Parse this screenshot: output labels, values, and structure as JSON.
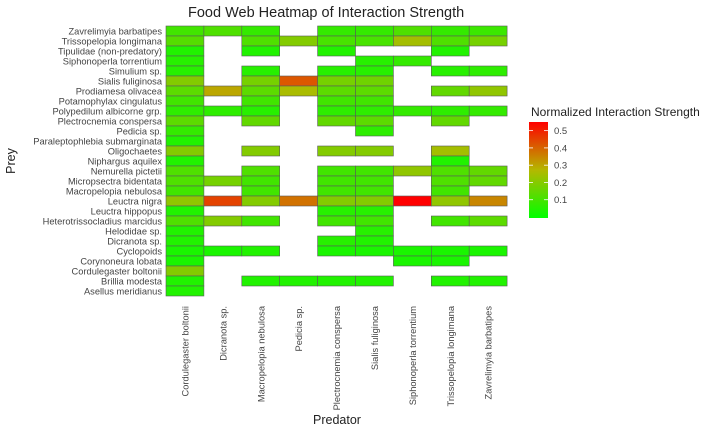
{
  "chart_data": {
    "type": "heatmap",
    "title": "Food Web Heatmap of Interaction Strength",
    "xlabel": "Predator",
    "ylabel": "Prey",
    "legend_title": "Normalized Interaction Strength",
    "legend_position": "right",
    "legend_ticks": [
      0.1,
      0.2,
      0.3,
      0.4,
      0.5
    ],
    "value_range": [
      0.0,
      0.55
    ],
    "color_low": "#00FF00",
    "color_mid": "#B4B800",
    "color_high": "#FF0000",
    "x": [
      "Cordulegaster boltonii",
      "Dicranota sp.",
      "Macropelopia nebulosa",
      "Pedicia sp.",
      "Plectrocnemia conspersa",
      "Sialis fuliginosa",
      "Siphonoperla torrentium",
      "Trissopelopia longimana",
      "Zavrelimyia barbatipes"
    ],
    "y": [
      "Zavrelimyia barbatipes",
      "Trissopelopia longimana",
      "Tipulidae (non-predatory)",
      "Siphonoperla torrentium",
      "Simulium sp.",
      "Sialis fuliginosa",
      "Prodiamesa olivacea",
      "Potamophylax cingulatus",
      "Polypedilum albicorne grp.",
      "Plectrocnemia conspersa",
      "Pedicia sp.",
      "Paraleptophlebia submarginata",
      "Oligochaetes",
      "Niphargus aquilex",
      "Nemurella pictetii",
      "Micropsectra bidentata",
      "Macropelopia nebulosa",
      "Leuctra nigra",
      "Leuctra hippopus",
      "Heterotrissocladius marcidus",
      "Helodidae sp.",
      "Dicranota sp.",
      "Cyclopoids",
      "Corynoneura lobata",
      "Cordulegaster boltonii",
      "Brillia modesta",
      "Asellus meridianus"
    ],
    "values": [
      [
        0.1,
        0.12,
        0.08,
        null,
        0.08,
        0.08,
        0.12,
        0.08,
        0.09
      ],
      [
        0.13,
        null,
        0.12,
        0.2,
        0.11,
        0.11,
        0.25,
        0.12,
        0.18
      ],
      [
        0.05,
        null,
        0.05,
        null,
        0.05,
        null,
        null,
        0.05,
        null
      ],
      [
        0.06,
        null,
        null,
        null,
        null,
        0.06,
        0.08,
        null,
        null
      ],
      [
        0.06,
        null,
        0.06,
        null,
        0.06,
        0.06,
        null,
        0.06,
        0.07
      ],
      [
        0.2,
        null,
        0.18,
        0.42,
        0.18,
        0.17,
        null,
        null,
        null
      ],
      [
        0.14,
        0.3,
        0.14,
        0.26,
        0.14,
        0.14,
        null,
        0.15,
        0.22
      ],
      [
        0.1,
        null,
        0.1,
        null,
        0.1,
        0.1,
        null,
        null,
        null
      ],
      [
        0.07,
        0.07,
        0.06,
        null,
        0.07,
        0.07,
        0.08,
        0.07,
        0.08
      ],
      [
        0.14,
        null,
        0.15,
        null,
        0.15,
        0.14,
        null,
        0.15,
        null
      ],
      [
        0.08,
        null,
        null,
        null,
        null,
        0.07,
        null,
        null,
        null
      ],
      [
        0.05,
        null,
        null,
        null,
        null,
        null,
        null,
        null,
        null
      ],
      [
        0.2,
        null,
        0.2,
        null,
        0.2,
        0.2,
        null,
        0.25,
        null
      ],
      [
        0.05,
        null,
        null,
        null,
        null,
        null,
        null,
        0.05,
        null
      ],
      [
        0.12,
        null,
        0.12,
        null,
        0.1,
        0.1,
        0.22,
        0.12,
        0.15
      ],
      [
        0.12,
        0.18,
        0.1,
        null,
        0.1,
        0.1,
        null,
        0.12,
        0.15
      ],
      [
        0.1,
        null,
        0.1,
        null,
        0.1,
        0.1,
        null,
        0.1,
        null
      ],
      [
        0.22,
        0.45,
        0.2,
        0.38,
        0.2,
        0.2,
        0.55,
        0.22,
        0.35
      ],
      [
        0.05,
        null,
        null,
        null,
        0.06,
        0.06,
        null,
        null,
        null
      ],
      [
        0.12,
        0.2,
        0.1,
        null,
        0.1,
        0.1,
        null,
        0.1,
        0.14
      ],
      [
        0.05,
        null,
        null,
        null,
        null,
        0.06,
        null,
        null,
        null
      ],
      [
        0.05,
        null,
        null,
        null,
        0.06,
        0.05,
        null,
        null,
        null
      ],
      [
        0.04,
        0.04,
        0.05,
        null,
        0.04,
        0.04,
        0.04,
        0.04,
        0.04
      ],
      [
        0.04,
        null,
        null,
        null,
        null,
        null,
        0.04,
        0.04,
        null
      ],
      [
        0.2,
        null,
        null,
        null,
        null,
        null,
        null,
        null,
        null
      ],
      [
        0.05,
        null,
        0.05,
        0.05,
        0.05,
        0.05,
        null,
        0.05,
        0.05
      ],
      [
        0.05,
        null,
        null,
        null,
        null,
        null,
        null,
        null,
        null
      ]
    ]
  }
}
